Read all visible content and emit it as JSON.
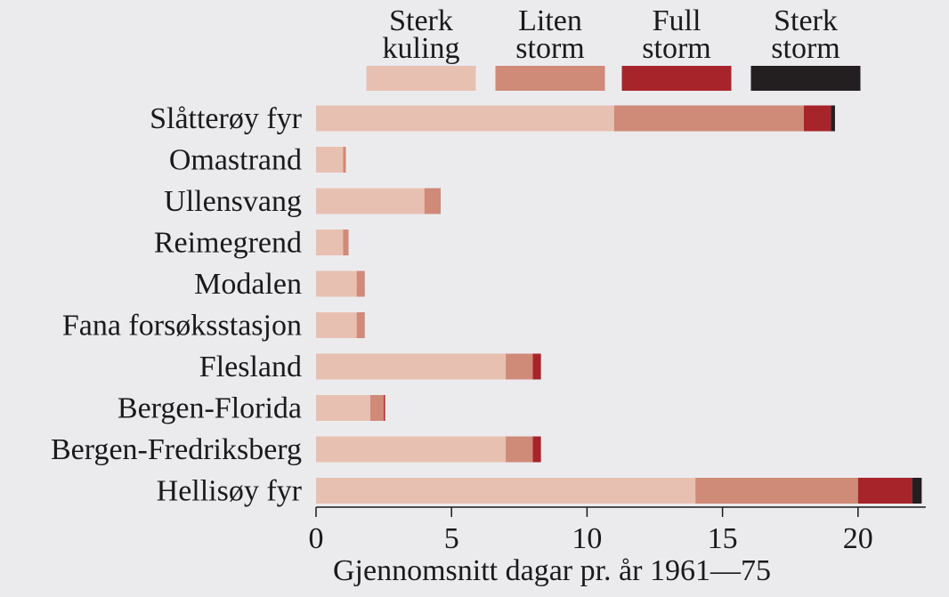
{
  "chart_data": {
    "type": "bar",
    "orientation": "horizontal",
    "stacked": true,
    "xlabel": "Gjennomsnitt dagar pr. år 1961—75",
    "xlim": [
      0,
      22.5
    ],
    "xticks": [
      0,
      5,
      10,
      15,
      20
    ],
    "grid": false,
    "legend_position": "top",
    "categories": [
      "Slåtterøy fyr",
      "Omastrand",
      "Ullensvang",
      "Reimegrend",
      "Modalen",
      "Fana forsøksstasjon",
      "Flesland",
      "Bergen-Florida",
      "Bergen-Fredriksberg",
      "Hellisøy fyr"
    ],
    "series": [
      {
        "name": "Sterk kuling",
        "lines": [
          "Sterk",
          "kuling"
        ],
        "color": "#e8c0b2",
        "values": [
          11,
          1,
          4,
          1,
          1.5,
          1.5,
          7,
          2,
          7,
          14
        ]
      },
      {
        "name": "Liten storm",
        "lines": [
          "Liten",
          "storm"
        ],
        "color": "#cf8a78",
        "values": [
          7,
          0.1,
          0.6,
          0.2,
          0.3,
          0.3,
          1,
          0.5,
          1,
          6
        ]
      },
      {
        "name": "Full storm",
        "lines": [
          "Full",
          "storm"
        ],
        "color": "#a8242b",
        "values": [
          1,
          0,
          0,
          0,
          0,
          0,
          0.3,
          0.05,
          0.3,
          2
        ]
      },
      {
        "name": "Sterk storm",
        "lines": [
          "Sterk",
          "storm"
        ],
        "color": "#231f20",
        "values": [
          0.15,
          0,
          0,
          0,
          0,
          0,
          0,
          0,
          0,
          0.35
        ]
      }
    ]
  }
}
